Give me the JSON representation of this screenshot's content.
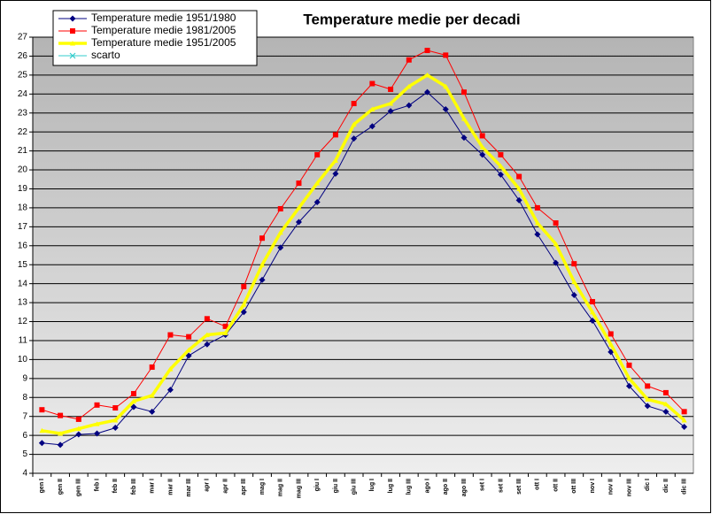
{
  "chart_data": {
    "type": "line",
    "title": "Temperature medie per decadi",
    "categories": [
      "gen I",
      "gen II",
      "gen III",
      "feb I",
      "feb II",
      "feb III",
      "mar I",
      "mar II",
      "mar III",
      "apr I",
      "apr II",
      "apr III",
      "mag I",
      "mag II",
      "mag III",
      "giu I",
      "giu II",
      "giu III",
      "lug I",
      "lug II",
      "lug III",
      "ago I",
      "ago II",
      "ago III",
      "set I",
      "set II",
      "set III",
      "ott I",
      "ott II",
      "ott III",
      "nov I",
      "nov II",
      "nov III",
      "dic I",
      "dic II",
      "dic III"
    ],
    "series": [
      {
        "name": "Temperature medie 1951/1980",
        "color": "#000080",
        "marker": "diamond",
        "values": [
          5.6,
          5.5,
          6.05,
          6.1,
          6.4,
          7.5,
          7.25,
          8.4,
          10.2,
          10.8,
          11.3,
          12.5,
          14.2,
          15.9,
          17.25,
          18.3,
          19.8,
          21.65,
          22.3,
          23.1,
          23.4,
          24.1,
          23.2,
          21.7,
          20.8,
          19.75,
          18.4,
          16.6,
          15.1,
          13.4,
          12.05,
          10.4,
          8.6,
          7.55,
          7.25,
          6.45
        ]
      },
      {
        "name": "Temperature medie 1981/2005",
        "color": "#ff0000",
        "marker": "square",
        "values": [
          7.35,
          7.05,
          6.85,
          7.6,
          7.45,
          8.2,
          9.6,
          11.3,
          11.2,
          12.15,
          11.75,
          13.85,
          16.4,
          17.95,
          19.3,
          20.8,
          21.85,
          23.5,
          24.55,
          24.25,
          25.8,
          26.3,
          26.05,
          24.1,
          21.8,
          20.8,
          19.65,
          18.0,
          17.2,
          15.05,
          13.05,
          11.35,
          9.7,
          8.6,
          8.25,
          7.25
        ]
      },
      {
        "name": "Temperature medie 1951/2005",
        "color": "#ffff00",
        "marker": "triangle",
        "values": [
          6.25,
          6.1,
          6.35,
          6.6,
          6.8,
          7.8,
          8.1,
          9.5,
          10.5,
          11.3,
          11.4,
          12.9,
          15.0,
          16.7,
          18.0,
          19.3,
          20.5,
          22.4,
          23.2,
          23.5,
          24.4,
          25.0,
          24.4,
          22.7,
          21.2,
          20.2,
          19.0,
          17.2,
          16.1,
          14.1,
          12.5,
          10.8,
          9.0,
          7.9,
          7.65,
          6.8
        ]
      },
      {
        "name": "scarto",
        "color": "#33cccc",
        "marker": "x",
        "values": [
          null,
          null,
          null,
          null,
          null,
          null,
          null,
          null,
          null,
          null,
          null,
          null,
          null,
          null,
          null,
          null,
          null,
          null,
          null,
          null,
          null,
          null,
          null,
          null,
          null,
          null,
          null,
          null,
          null,
          null,
          null,
          null,
          null,
          null,
          null,
          null
        ]
      }
    ],
    "ylim": [
      4,
      27
    ],
    "yticks": [
      4,
      5,
      6,
      7,
      8,
      9,
      10,
      11,
      12,
      13,
      14,
      15,
      16,
      17,
      18,
      19,
      20,
      21,
      22,
      23,
      24,
      25,
      26,
      27
    ],
    "grid": true,
    "legend": "top-left"
  }
}
